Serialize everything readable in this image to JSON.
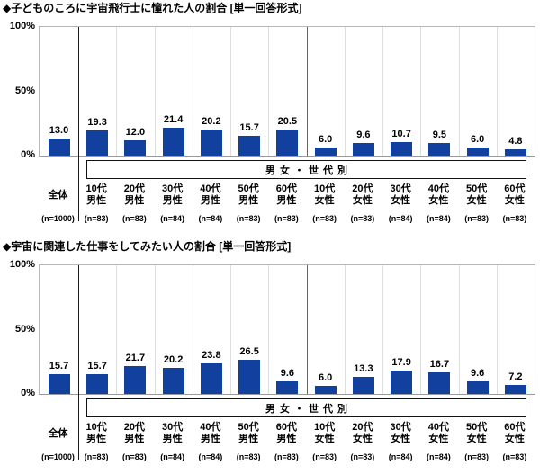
{
  "page": {
    "background": "#ffffff",
    "text_color": "#000000"
  },
  "chart_data": [
    {
      "type": "bar",
      "title": "◆子どものころに宇宙飛行士に憧れた人の割合 [単一回答形式]",
      "y_ticks": [
        "100%",
        "50%",
        "0%"
      ],
      "ylim": [
        0,
        100
      ],
      "grid": "vertical-column-separators-only",
      "legend": "none",
      "group_label": "男女・世代別",
      "bar_color": "#11409e",
      "categories": [
        "全体",
        "10代男性",
        "20代男性",
        "30代男性",
        "40代男性",
        "50代男性",
        "60代男性",
        "10代女性",
        "20代女性",
        "30代女性",
        "40代女性",
        "50代女性",
        "60代女性"
      ],
      "n_labels": [
        "(n=1000)",
        "(n=83)",
        "(n=83)",
        "(n=84)",
        "(n=84)",
        "(n=83)",
        "(n=83)",
        "(n=83)",
        "(n=83)",
        "(n=84)",
        "(n=84)",
        "(n=83)",
        "(n=83)"
      ],
      "values": [
        13.0,
        19.3,
        12.0,
        21.4,
        20.2,
        15.7,
        20.5,
        6.0,
        9.6,
        10.7,
        9.5,
        6.0,
        4.8
      ]
    },
    {
      "type": "bar",
      "title": "◆宇宙に関連した仕事をしてみたい人の割合 [単一回答形式]",
      "y_ticks": [
        "100%",
        "50%",
        "0%"
      ],
      "ylim": [
        0,
        100
      ],
      "grid": "vertical-column-separators-only",
      "legend": "none",
      "group_label": "男女・世代別",
      "bar_color": "#11409e",
      "categories": [
        "全体",
        "10代男性",
        "20代男性",
        "30代男性",
        "40代男性",
        "50代男性",
        "60代男性",
        "10代女性",
        "20代女性",
        "30代女性",
        "40代女性",
        "50代女性",
        "60代女性"
      ],
      "n_labels": [
        "(n=1000)",
        "(n=83)",
        "(n=83)",
        "(n=84)",
        "(n=84)",
        "(n=83)",
        "(n=83)",
        "(n=83)",
        "(n=83)",
        "(n=84)",
        "(n=84)",
        "(n=83)",
        "(n=83)"
      ],
      "values": [
        15.7,
        15.7,
        21.7,
        20.2,
        23.8,
        26.5,
        9.6,
        6.0,
        13.3,
        17.9,
        16.7,
        9.6,
        7.2
      ]
    }
  ]
}
